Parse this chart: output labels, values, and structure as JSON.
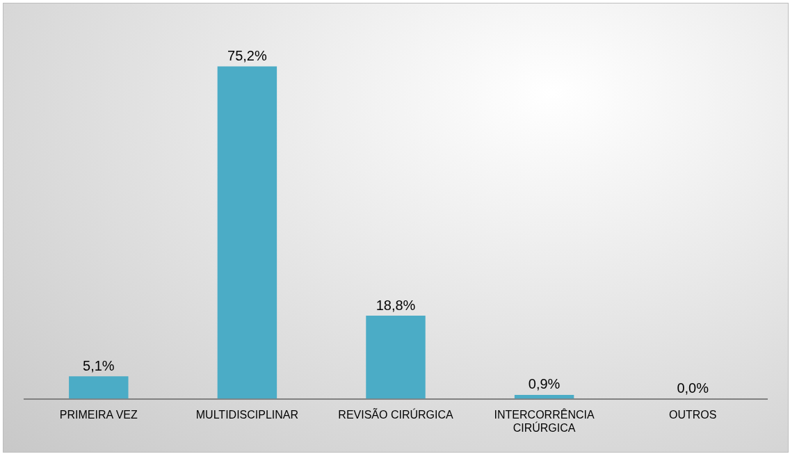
{
  "chart_data": {
    "type": "bar",
    "categories": [
      "PRIMEIRA VEZ",
      "MULTIDISCIPLINAR",
      "REVISÃO CIRÚRGICA",
      "INTERCORRÊNCIA CIRÚRGICA",
      "OUTROS"
    ],
    "values": [
      5.1,
      75.2,
      18.8,
      0.9,
      0.0
    ],
    "value_labels": [
      "5,1%",
      "75,2%",
      "18,8%",
      "0,9%",
      "0,0%"
    ],
    "color": "#4bacc6",
    "grid": false,
    "legend": false
  }
}
